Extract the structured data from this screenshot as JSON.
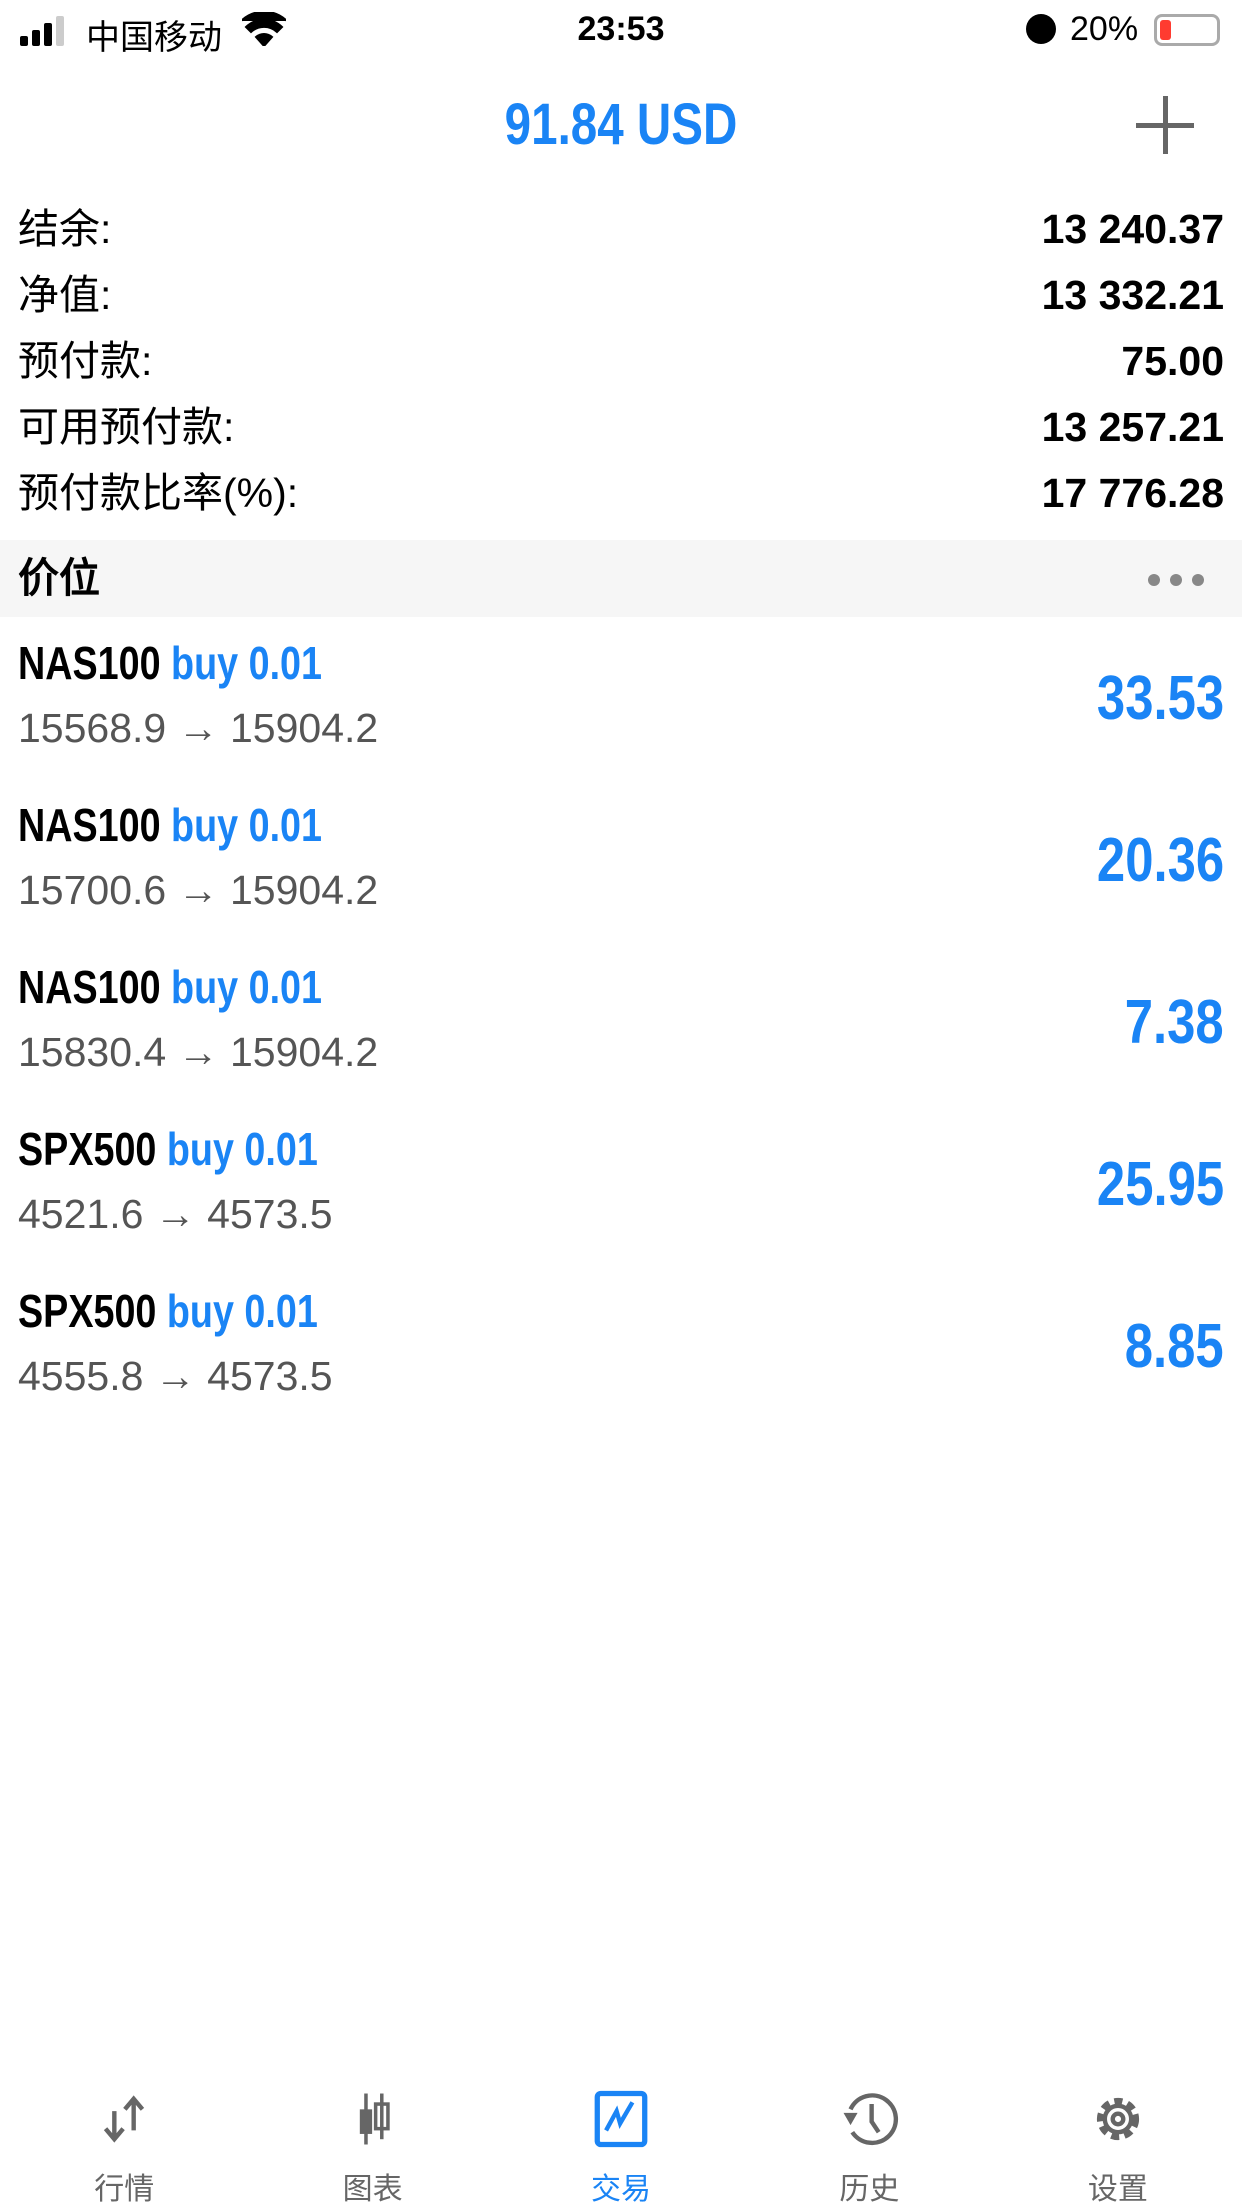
{
  "status_bar": {
    "carrier": "中国移动",
    "time": "23:53",
    "battery": "20%",
    "battery_level": 0.2
  },
  "header": {
    "title": "91.84 USD",
    "add_icon": "plus-icon"
  },
  "summary": [
    {
      "label": "结余:",
      "value": "13 240.37"
    },
    {
      "label": "净值:",
      "value": "13 332.21"
    },
    {
      "label": "预付款:",
      "value": "75.00"
    },
    {
      "label": "可用预付款:",
      "value": "13 257.21"
    },
    {
      "label": "预付款比率(%):",
      "value": "17 776.28"
    }
  ],
  "section": {
    "title": "价位",
    "more_icon": "more-dots-icon"
  },
  "positions": [
    {
      "symbol": "NAS100",
      "side": "buy 0.01",
      "prices": "15568.9 → 15904.2",
      "profit": "33.53"
    },
    {
      "symbol": "NAS100",
      "side": "buy 0.01",
      "prices": "15700.6 → 15904.2",
      "profit": "20.36"
    },
    {
      "symbol": "NAS100",
      "side": "buy 0.01",
      "prices": "15830.4 → 15904.2",
      "profit": "7.38"
    },
    {
      "symbol": "SPX500",
      "side": "buy 0.01",
      "prices": "4521.6 → 4573.5",
      "profit": "25.95"
    },
    {
      "symbol": "SPX500",
      "side": "buy 0.01",
      "prices": "4555.8 → 4573.5",
      "profit": "8.85"
    }
  ],
  "tabs": [
    {
      "label": "行情",
      "icon": "quotes-arrows-icon"
    },
    {
      "label": "图表",
      "icon": "candlestick-icon"
    },
    {
      "label": "交易",
      "icon": "trade-chart-icon",
      "active": true
    },
    {
      "label": "历史",
      "icon": "history-clock-icon"
    },
    {
      "label": "设置",
      "icon": "gear-icon"
    }
  ],
  "colors": {
    "accent": "#1a84f5",
    "icon_gray": "#666666",
    "battery_low": "#ff3b30"
  }
}
